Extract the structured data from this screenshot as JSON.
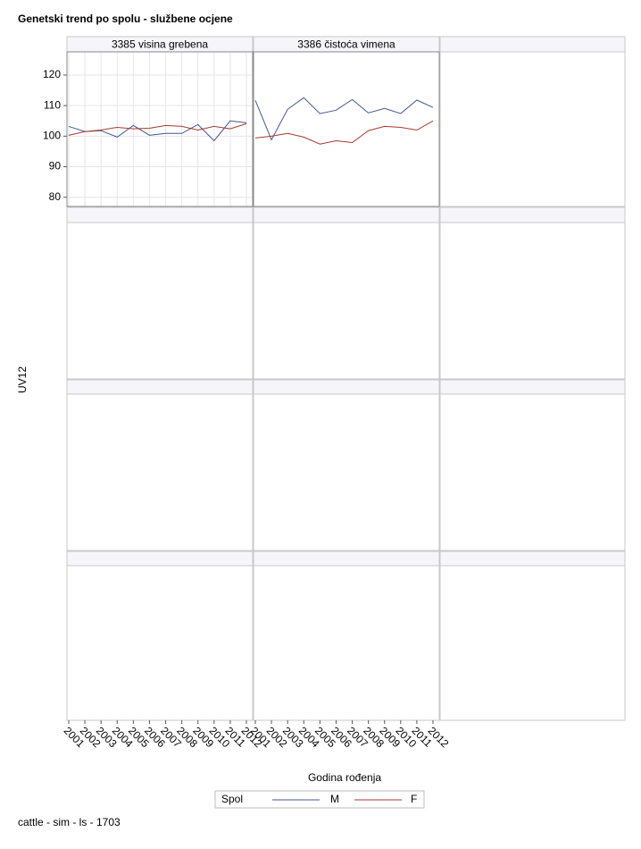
{
  "page": {
    "title": "Genetski trend po spolu - službene ocjene",
    "ylabel": "UV12",
    "xlabel": "Godina rođenja",
    "legend_title": "Spol",
    "footnote": "cattle - sim - ls - 1703"
  },
  "chart_data": [
    {
      "type": "line",
      "title": "3385 visina grebena",
      "categories": [
        "2001",
        "2002",
        "2003",
        "2004",
        "2005",
        "2006",
        "2007",
        "2008",
        "2009",
        "2010",
        "2011",
        "2012"
      ],
      "series": [
        {
          "name": "M",
          "color": "#445694",
          "values": [
            103.2,
            101.5,
            101.8,
            99.7,
            103.5,
            100.3,
            100.9,
            100.9,
            103.8,
            98.5,
            105,
            104.4
          ]
        },
        {
          "name": "F",
          "color": "#a23a2e",
          "values": [
            100.3,
            101.5,
            102,
            102.9,
            102.4,
            102.6,
            103.5,
            103.2,
            102,
            103.2,
            102.4,
            104.1
          ]
        }
      ],
      "ylim": [
        77,
        127.6
      ],
      "yticks": [
        80,
        90,
        100,
        110,
        120
      ],
      "grid": true
    },
    {
      "type": "line",
      "title": "3386 čistoća vimena",
      "categories": [
        "2001",
        "2002",
        "2003",
        "2004",
        "2005",
        "2006",
        "2007",
        "2008",
        "2009",
        "2010",
        "2011",
        "2012"
      ],
      "series": [
        {
          "name": "M",
          "color": "#445694",
          "values": [
            111.7,
            98.8,
            108.8,
            112.6,
            107.4,
            108.5,
            112,
            107.6,
            109.1,
            107.4,
            111.8,
            109.4
          ]
        },
        {
          "name": "F",
          "color": "#a23a2e",
          "values": [
            99.4,
            100,
            100.9,
            99.7,
            97.4,
            98.5,
            97.9,
            101.8,
            103.2,
            102.9,
            102,
            105
          ]
        }
      ],
      "ylim": [
        77,
        127.6
      ],
      "yticks": [
        80,
        90,
        100,
        110,
        120
      ],
      "grid": false
    }
  ]
}
